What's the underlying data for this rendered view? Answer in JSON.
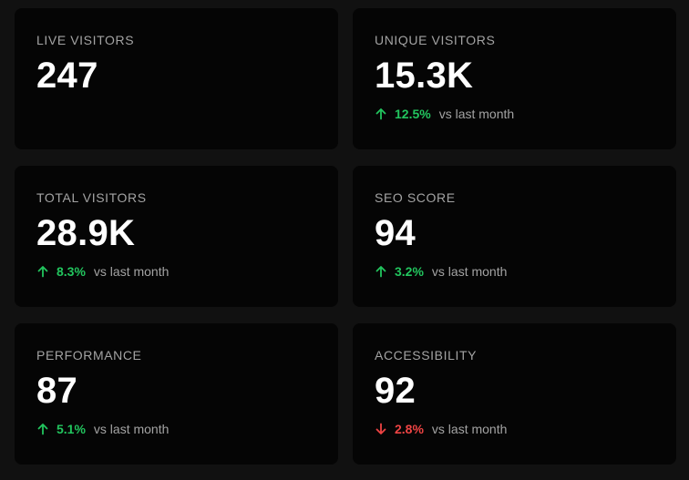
{
  "cards": [
    {
      "label": "LIVE VISITORS",
      "value": "247"
    },
    {
      "label": "UNIQUE VISITORS",
      "value": "15.3K",
      "change": {
        "percent": "12.5%",
        "direction": "up",
        "suffix": "vs last month"
      }
    },
    {
      "label": "TOTAL VISITORS",
      "value": "28.9K",
      "change": {
        "percent": "8.3%",
        "direction": "up",
        "suffix": "vs last month"
      }
    },
    {
      "label": "SEO SCORE",
      "value": "94",
      "change": {
        "percent": "3.2%",
        "direction": "up",
        "suffix": "vs last month"
      }
    },
    {
      "label": "PERFORMANCE",
      "value": "87",
      "change": {
        "percent": "5.1%",
        "direction": "up",
        "suffix": "vs last month"
      }
    },
    {
      "label": "ACCESSIBILITY",
      "value": "92",
      "change": {
        "percent": "2.8%",
        "direction": "down",
        "suffix": "vs last month"
      }
    }
  ],
  "colors": {
    "up": "#22c55e",
    "down": "#ef4444"
  },
  "icons": {
    "up": "arrow-up-icon",
    "down": "arrow-down-icon"
  }
}
